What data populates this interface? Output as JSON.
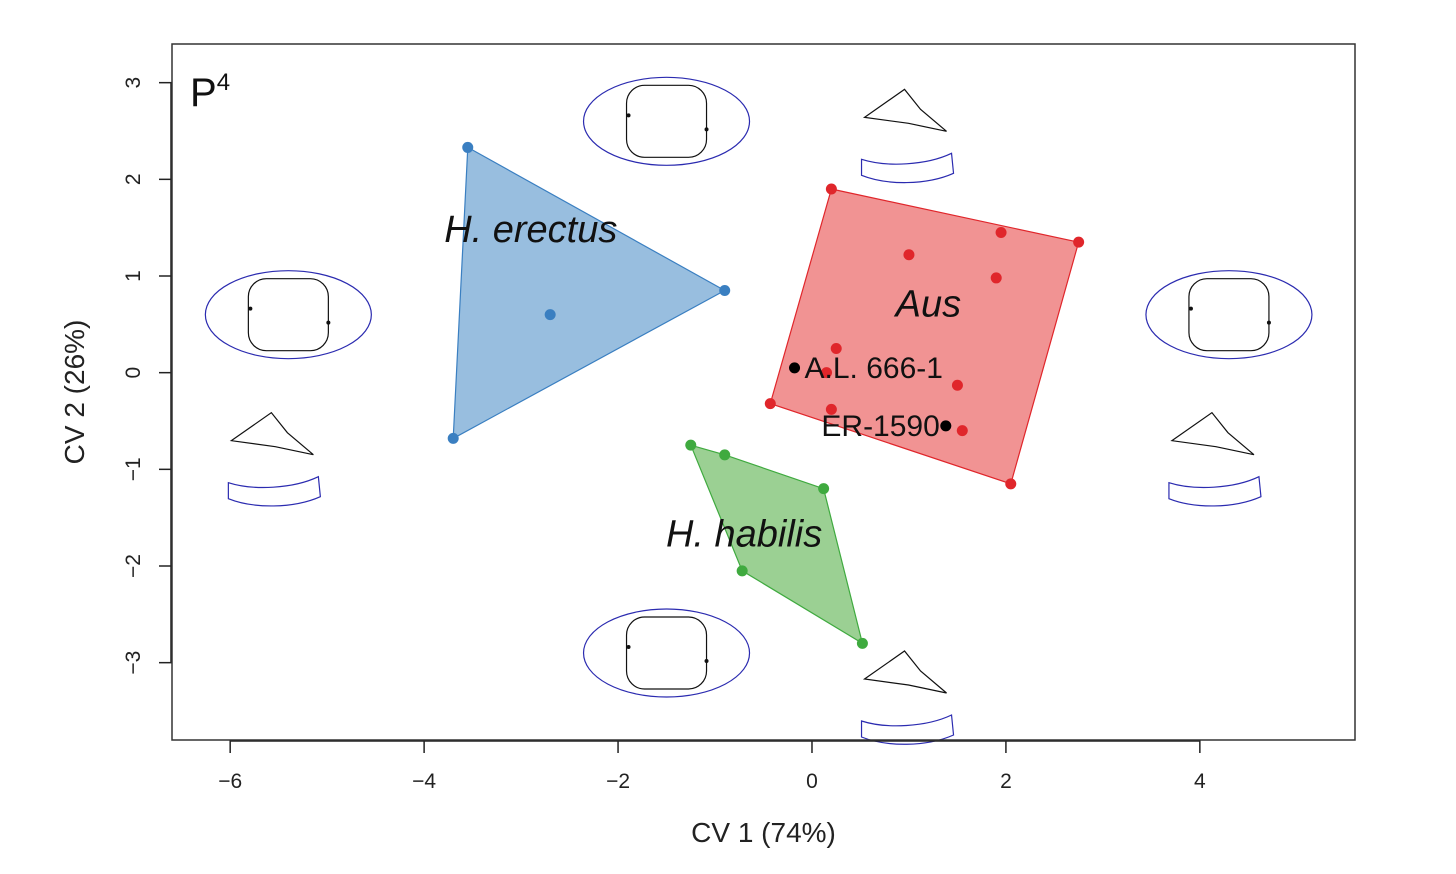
{
  "chart_data": {
    "type": "scatter",
    "panel_label": "P",
    "panel_superscript": "4",
    "xlabel": "CV 1 (74%)",
    "ylabel": "CV 2 (26%)",
    "xlim": [
      -6.6,
      5.6
    ],
    "ylim": [
      -3.8,
      3.4
    ],
    "x_ticks": [
      -6,
      -4,
      -2,
      0,
      2,
      4
    ],
    "y_ticks": [
      -3,
      -2,
      -1,
      0,
      1,
      2,
      3
    ],
    "x_tick_labels": [
      "−6",
      "−4",
      "−2",
      "0",
      "2",
      "4"
    ],
    "y_tick_labels": [
      "−3",
      "−2",
      "−1",
      "0",
      "1",
      "2",
      "3"
    ],
    "groups": [
      {
        "name": "H. erectus",
        "color": "#3a7fc1",
        "fill": "#8fb8dc",
        "label_position": {
          "x": -2.9,
          "y": 1.35
        },
        "points": [
          [
            -3.55,
            2.33
          ],
          [
            -0.9,
            0.85
          ],
          [
            -2.7,
            0.6
          ],
          [
            -3.7,
            -0.68
          ]
        ],
        "hull": [
          [
            -3.55,
            2.33
          ],
          [
            -0.9,
            0.85
          ],
          [
            -3.7,
            -0.68
          ]
        ]
      },
      {
        "name": "Aus",
        "color": "#e0262b",
        "fill": "#f08a8a",
        "label_position": {
          "x": 1.2,
          "y": 0.58
        },
        "points": [
          [
            0.2,
            1.9
          ],
          [
            1.0,
            1.22
          ],
          [
            1.95,
            1.45
          ],
          [
            2.75,
            1.35
          ],
          [
            1.9,
            0.98
          ],
          [
            0.25,
            0.25
          ],
          [
            0.15,
            0.0
          ],
          [
            1.5,
            -0.13
          ],
          [
            -0.43,
            -0.32
          ],
          [
            0.2,
            -0.38
          ],
          [
            1.55,
            -0.6
          ],
          [
            2.05,
            -1.15
          ]
        ],
        "hull": [
          [
            0.2,
            1.9
          ],
          [
            2.75,
            1.35
          ],
          [
            2.05,
            -1.15
          ],
          [
            -0.43,
            -0.32
          ]
        ]
      },
      {
        "name": "H. habilis",
        "color": "#3faa3f",
        "fill": "#92cc8a",
        "label_position": {
          "x": -0.7,
          "y": -1.8
        },
        "points": [
          [
            -1.25,
            -0.75
          ],
          [
            -0.9,
            -0.85
          ],
          [
            0.12,
            -1.2
          ],
          [
            -0.72,
            -2.05
          ],
          [
            0.52,
            -2.8
          ]
        ],
        "hull": [
          [
            -1.25,
            -0.75
          ],
          [
            -0.9,
            -0.85
          ],
          [
            0.12,
            -1.2
          ],
          [
            0.52,
            -2.8
          ],
          [
            -0.72,
            -2.05
          ]
        ]
      }
    ],
    "specimens": [
      {
        "label": "A.L. 666-1",
        "x": -0.18,
        "y": 0.05,
        "label_side": "right"
      },
      {
        "label": "ER-1590",
        "x": 1.38,
        "y": -0.55,
        "label_side": "left"
      }
    ],
    "shape_glyphs": [
      {
        "position": "left",
        "x": -5.4,
        "y": 0.6
      },
      {
        "position": "top",
        "x": -1.5,
        "y": 2.6
      },
      {
        "position": "right",
        "x": 4.3,
        "y": 0.6
      },
      {
        "position": "bottom",
        "x": -1.5,
        "y": -2.9
      }
    ],
    "colors": {
      "outline": "#2b2bb0",
      "inner": "#111111",
      "axis": "#222222"
    }
  }
}
